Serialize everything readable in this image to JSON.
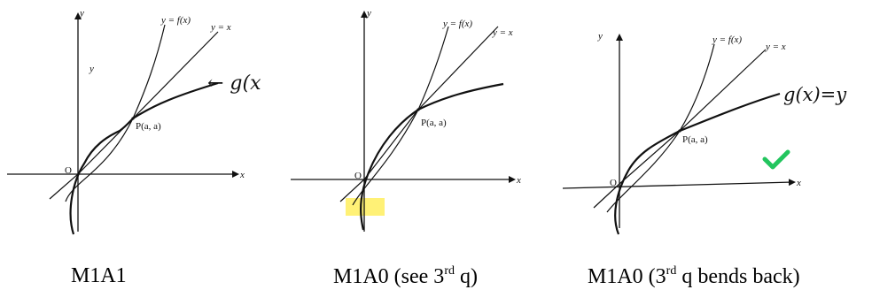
{
  "panels": [
    {
      "labels": {
        "y_axis": "y",
        "x_axis": "x",
        "fx": "y = f(x)",
        "yx": "y = x",
        "point": "P(a, a)",
        "origin": "O"
      },
      "annotation": "← g(x",
      "caption": {
        "main": "M1A1",
        "sup": "",
        "after": ""
      }
    },
    {
      "labels": {
        "y_axis": "y",
        "x_axis": "x",
        "fx": "y = f(x)",
        "yx": "y = x",
        "point": "P(a, a)",
        "origin": "O"
      },
      "highlight_color": "#fff176",
      "caption": {
        "main": "M1A0 (see 3",
        "sup": "rd",
        "after": " q)"
      }
    },
    {
      "labels": {
        "y_axis": "y",
        "x_axis": "x",
        "fx": "y = f(x)",
        "yx": "y = x",
        "point": "P(a, a)",
        "origin": "O"
      },
      "annotation": "g(x)=y",
      "check_color": "#22c55e",
      "caption": {
        "main": "M1A0 (3",
        "sup": "rd",
        "after": " q bends back)"
      }
    }
  ]
}
